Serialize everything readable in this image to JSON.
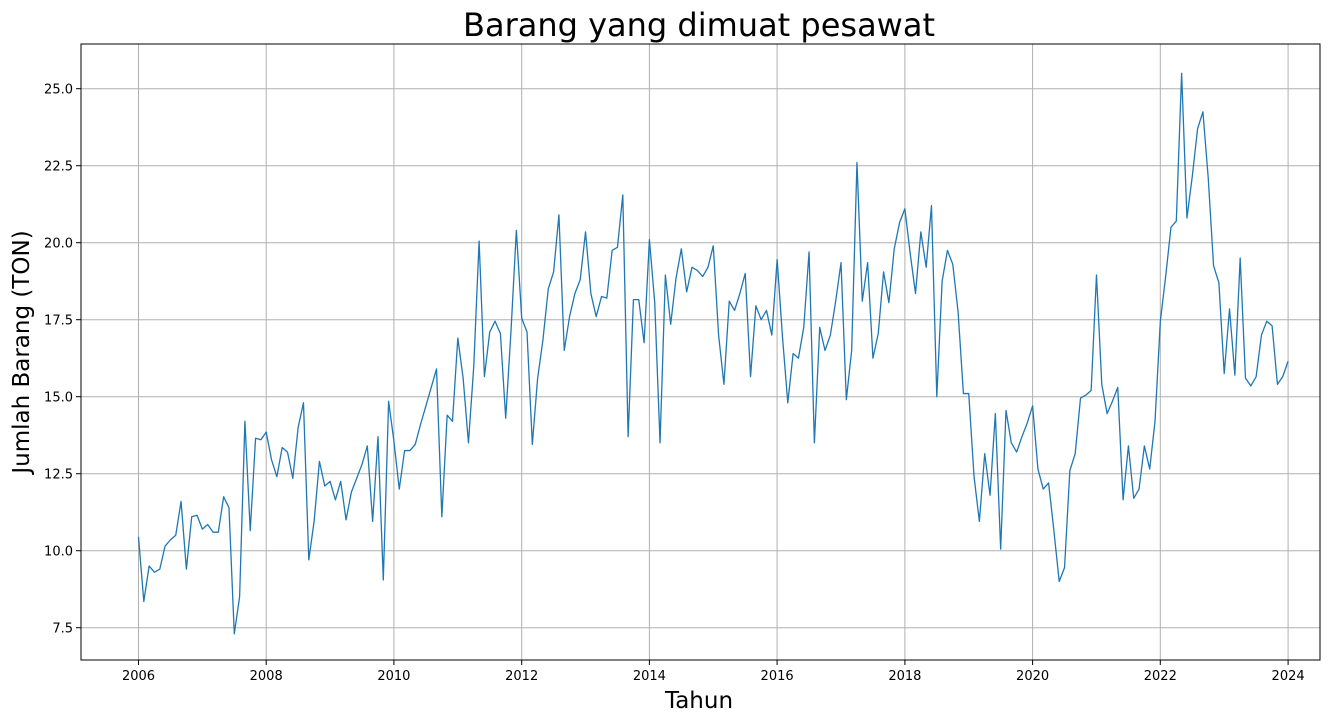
{
  "chart_data": {
    "type": "line",
    "title": "Barang yang dimuat pesawat",
    "xlabel": "Tahun",
    "ylabel": "Jumlah Barang (TON)",
    "xlim": [
      2005.1,
      2024.5
    ],
    "ylim": [
      6.45,
      26.45
    ],
    "x_ticks": [
      2006,
      2008,
      2010,
      2012,
      2014,
      2016,
      2018,
      2020,
      2022,
      2024
    ],
    "y_ticks": [
      7.5,
      10.0,
      12.5,
      15.0,
      17.5,
      20.0,
      22.5,
      25.0
    ],
    "grid": true,
    "color": "#1f77b4",
    "series": [
      {
        "x_start": "2006-01",
        "frequency": "monthly",
        "values": [
          10.45,
          8.35,
          9.5,
          9.3,
          9.4,
          10.15,
          10.35,
          10.5,
          11.6,
          9.4,
          11.1,
          11.15,
          10.7,
          10.85,
          10.6,
          10.6,
          11.75,
          11.4,
          7.3,
          8.5,
          14.2,
          10.65,
          13.65,
          13.6,
          13.85,
          12.95,
          12.4,
          13.35,
          13.2,
          12.35,
          14.0,
          14.8,
          9.7,
          10.95,
          12.9,
          12.1,
          12.25,
          11.65,
          12.25,
          11.0,
          11.9,
          12.35,
          12.8,
          13.4,
          10.95,
          13.7,
          9.05,
          14.85,
          13.55,
          12.0,
          13.25,
          13.25,
          13.45,
          14.1,
          14.7,
          15.3,
          15.9,
          11.1,
          14.4,
          14.2,
          16.9,
          15.6,
          13.5,
          16.0,
          20.05,
          15.65,
          17.1,
          17.45,
          17.05,
          14.3,
          17.15,
          20.4,
          17.55,
          17.1,
          13.45,
          15.6,
          16.85,
          18.5,
          19.05,
          20.9,
          16.5,
          17.6,
          18.35,
          18.8,
          20.35,
          18.35,
          17.6,
          18.25,
          18.2,
          19.75,
          19.85,
          21.55,
          13.7,
          18.15,
          18.15,
          16.75,
          20.1,
          18.05,
          13.5,
          18.95,
          17.35,
          18.85,
          19.8,
          18.4,
          19.2,
          19.1,
          18.9,
          19.2,
          19.9,
          17.0,
          15.4,
          18.1,
          17.8,
          18.35,
          19.0,
          15.65,
          17.95,
          17.5,
          17.8,
          17.0,
          19.45,
          16.95,
          14.8,
          16.4,
          16.25,
          17.25,
          19.7,
          13.5,
          17.25,
          16.5,
          17.0,
          18.1,
          19.35,
          14.9,
          16.5,
          22.6,
          18.1,
          19.35,
          16.25,
          17.05,
          19.05,
          18.05,
          19.8,
          20.65,
          21.1,
          19.65,
          18.35,
          20.35,
          19.2,
          21.2,
          15.0,
          18.75,
          19.75,
          19.3,
          17.75,
          15.1,
          15.1,
          12.4,
          10.95,
          13.15,
          11.8,
          14.45,
          10.05,
          14.55,
          13.5,
          13.2,
          13.7,
          14.15,
          14.7,
          12.65,
          12.0,
          12.2,
          10.65,
          9.0,
          9.45,
          12.6,
          13.15,
          14.95,
          15.05,
          15.2,
          18.95,
          15.4,
          14.45,
          14.85,
          15.3,
          11.65,
          13.4,
          11.7,
          12.0,
          13.4,
          12.65,
          14.2,
          17.45,
          18.9,
          20.5,
          20.7,
          25.5,
          20.8,
          22.15,
          23.7,
          24.25,
          22.1,
          19.25,
          18.7,
          15.75,
          17.85,
          15.7,
          19.5,
          15.6,
          15.35,
          15.65,
          17.0,
          17.45,
          17.3,
          15.4,
          15.65,
          16.15
        ]
      }
    ]
  }
}
